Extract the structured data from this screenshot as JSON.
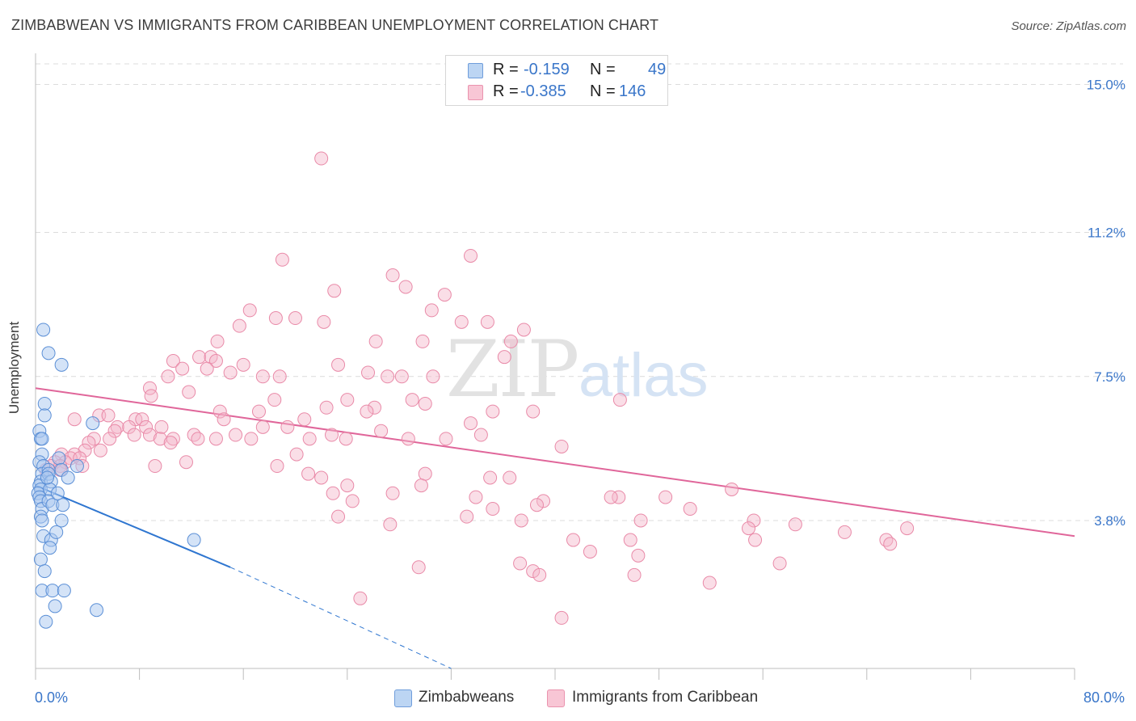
{
  "title": "ZIMBABWEAN VS IMMIGRANTS FROM CARIBBEAN UNEMPLOYMENT CORRELATION CHART",
  "source": "Source: ZipAtlas.com",
  "watermark": {
    "zip": "ZIP",
    "atlas": "atlas"
  },
  "colors": {
    "blue_fill": "#a9c8ef",
    "blue_stroke": "#5b8fd6",
    "blue_line": "#2f76d0",
    "pink_fill": "#f5b6c9",
    "pink_stroke": "#e98aa8",
    "pink_line": "#e0669a",
    "tick_text": "#3a76c9",
    "grid": "#dcdcdc"
  },
  "legend_top": [
    {
      "r_label": "R =",
      "r_value": "-0.159",
      "n_label": "N =",
      "n_value": "49",
      "color": "blue"
    },
    {
      "r_label": "R =",
      "r_value": "-0.385",
      "n_label": "N =",
      "n_value": "146",
      "color": "pink"
    }
  ],
  "legend_bottom": [
    {
      "label": "Zimbabweans",
      "color": "blue"
    },
    {
      "label": "Immigrants from Caribbean",
      "color": "pink"
    }
  ],
  "chart_data": {
    "type": "scatter",
    "title": "ZIMBABWEAN VS IMMIGRANTS FROM CARIBBEAN UNEMPLOYMENT CORRELATION CHART",
    "xlabel": "",
    "ylabel": "Unemployment",
    "xlim": [
      0,
      80
    ],
    "ylim": [
      0,
      15.8
    ],
    "x_tick_labels": [
      "0.0%",
      "80.0%"
    ],
    "y_ticks": [
      3.8,
      7.5,
      11.2,
      15.0
    ],
    "y_tick_labels": [
      "3.8%",
      "7.5%",
      "11.2%",
      "15.0%"
    ],
    "grid": "horizontal dashed",
    "legend_placement": "top-center",
    "series": [
      {
        "name": "Zimbabweans",
        "color": "blue",
        "trend": {
          "x_start": 0,
          "y_start": 4.7,
          "x_solid_end": 15,
          "y_solid_end": 2.6,
          "x_dash_end": 32,
          "y_dash_end": 0.0
        },
        "points": [
          [
            0.3,
            6.1
          ],
          [
            0.4,
            5.9
          ],
          [
            0.5,
            5.9
          ],
          [
            0.5,
            5.5
          ],
          [
            0.3,
            5.3
          ],
          [
            0.6,
            5.2
          ],
          [
            0.5,
            5.0
          ],
          [
            0.4,
            4.8
          ],
          [
            0.3,
            4.7
          ],
          [
            0.4,
            4.6
          ],
          [
            0.2,
            4.5
          ],
          [
            0.3,
            4.4
          ],
          [
            0.4,
            4.3
          ],
          [
            0.5,
            4.1
          ],
          [
            0.4,
            3.9
          ],
          [
            0.5,
            3.8
          ],
          [
            0.6,
            3.4
          ],
          [
            0.4,
            2.8
          ],
          [
            0.7,
            2.5
          ],
          [
            0.5,
            2.0
          ],
          [
            0.8,
            1.2
          ],
          [
            0.6,
            8.7
          ],
          [
            1.0,
            8.1
          ],
          [
            0.7,
            6.8
          ],
          [
            0.7,
            6.5
          ],
          [
            1.0,
            5.1
          ],
          [
            1.0,
            5.0
          ],
          [
            1.2,
            4.8
          ],
          [
            1.1,
            4.6
          ],
          [
            1.0,
            4.3
          ],
          [
            1.3,
            4.2
          ],
          [
            1.2,
            3.3
          ],
          [
            1.1,
            3.1
          ],
          [
            1.6,
            3.5
          ],
          [
            1.3,
            2.0
          ],
          [
            1.5,
            1.6
          ],
          [
            2.0,
            7.8
          ],
          [
            1.8,
            5.4
          ],
          [
            2.0,
            5.1
          ],
          [
            2.1,
            4.2
          ],
          [
            2.0,
            3.8
          ],
          [
            2.2,
            2.0
          ],
          [
            3.2,
            5.2
          ],
          [
            4.4,
            6.3
          ],
          [
            2.5,
            4.9
          ],
          [
            1.7,
            4.5
          ],
          [
            4.7,
            1.5
          ],
          [
            12.2,
            3.3
          ],
          [
            0.9,
            4.9
          ]
        ]
      },
      {
        "name": "Immigrants from Caribbean",
        "color": "pink",
        "trend": {
          "x_start": 0,
          "y_start": 7.2,
          "x_end": 80,
          "y_end": 3.4
        },
        "points": [
          [
            22,
            13.1
          ],
          [
            33.5,
            10.6
          ],
          [
            19,
            10.5
          ],
          [
            27.5,
            10.1
          ],
          [
            28.5,
            9.8
          ],
          [
            23,
            9.7
          ],
          [
            31.5,
            9.6
          ],
          [
            16.5,
            9.2
          ],
          [
            30.5,
            9.2
          ],
          [
            18.5,
            9.0
          ],
          [
            20,
            9.0
          ],
          [
            22.2,
            8.9
          ],
          [
            32.8,
            8.9
          ],
          [
            34.8,
            8.9
          ],
          [
            15.7,
            8.8
          ],
          [
            37.6,
            8.7
          ],
          [
            14,
            8.4
          ],
          [
            26.2,
            8.4
          ],
          [
            29.8,
            8.4
          ],
          [
            36.6,
            8.4
          ],
          [
            12.6,
            8.0
          ],
          [
            13.5,
            8.0
          ],
          [
            36.1,
            8.0
          ],
          [
            10.6,
            7.9
          ],
          [
            13.9,
            7.9
          ],
          [
            16,
            7.8
          ],
          [
            23.3,
            7.8
          ],
          [
            11.3,
            7.7
          ],
          [
            13.2,
            7.7
          ],
          [
            15,
            7.6
          ],
          [
            25.6,
            7.6
          ],
          [
            10.2,
            7.5
          ],
          [
            17.5,
            7.5
          ],
          [
            18.8,
            7.5
          ],
          [
            27.1,
            7.5
          ],
          [
            28.2,
            7.5
          ],
          [
            30.6,
            7.5
          ],
          [
            8.8,
            7.2
          ],
          [
            11.8,
            7.1
          ],
          [
            8.9,
            7.0
          ],
          [
            24,
            6.9
          ],
          [
            29,
            6.9
          ],
          [
            18.4,
            6.9
          ],
          [
            30,
            6.8
          ],
          [
            45,
            6.9
          ],
          [
            22.4,
            6.7
          ],
          [
            26.1,
            6.7
          ],
          [
            14.2,
            6.6
          ],
          [
            17.2,
            6.6
          ],
          [
            25.5,
            6.6
          ],
          [
            35.2,
            6.6
          ],
          [
            38.3,
            6.6
          ],
          [
            4.9,
            6.5
          ],
          [
            5.6,
            6.5
          ],
          [
            14.5,
            6.4
          ],
          [
            20.7,
            6.4
          ],
          [
            3,
            6.4
          ],
          [
            7.7,
            6.4
          ],
          [
            8.2,
            6.4
          ],
          [
            33.5,
            6.3
          ],
          [
            6.3,
            6.2
          ],
          [
            7.2,
            6.2
          ],
          [
            8.5,
            6.2
          ],
          [
            9.7,
            6.2
          ],
          [
            17.5,
            6.2
          ],
          [
            19.4,
            6.2
          ],
          [
            26.6,
            6.1
          ],
          [
            6.1,
            6.1
          ],
          [
            7.6,
            6.0
          ],
          [
            8.8,
            6.0
          ],
          [
            12.2,
            6.0
          ],
          [
            15.4,
            6.0
          ],
          [
            22.8,
            6.0
          ],
          [
            34.3,
            6.0
          ],
          [
            4.5,
            5.9
          ],
          [
            5.7,
            5.9
          ],
          [
            9.6,
            5.9
          ],
          [
            10.6,
            5.9
          ],
          [
            12.5,
            5.9
          ],
          [
            13.9,
            5.9
          ],
          [
            16.6,
            5.9
          ],
          [
            21.1,
            5.9
          ],
          [
            23.9,
            5.9
          ],
          [
            28.7,
            5.9
          ],
          [
            31.6,
            5.9
          ],
          [
            4.1,
            5.8
          ],
          [
            10.4,
            5.8
          ],
          [
            40.5,
            5.7
          ],
          [
            3.8,
            5.6
          ],
          [
            5,
            5.6
          ],
          [
            2,
            5.5
          ],
          [
            3,
            5.5
          ],
          [
            20.1,
            5.5
          ],
          [
            2.7,
            5.4
          ],
          [
            3.4,
            5.4
          ],
          [
            1.5,
            5.3
          ],
          [
            2.3,
            5.3
          ],
          [
            11.6,
            5.3
          ],
          [
            1.2,
            5.2
          ],
          [
            1.9,
            5.2
          ],
          [
            3.6,
            5.2
          ],
          [
            9.2,
            5.2
          ],
          [
            18.6,
            5.2
          ],
          [
            0.8,
            5.1
          ],
          [
            1.9,
            5.1
          ],
          [
            21,
            5.0
          ],
          [
            30,
            5.0
          ],
          [
            36.5,
            4.9
          ],
          [
            35,
            4.9
          ],
          [
            22,
            4.9
          ],
          [
            24,
            4.7
          ],
          [
            29.7,
            4.7
          ],
          [
            53.6,
            4.6
          ],
          [
            22.9,
            4.5
          ],
          [
            27.5,
            4.5
          ],
          [
            44.9,
            4.4
          ],
          [
            33.9,
            4.4
          ],
          [
            44.3,
            4.4
          ],
          [
            48.5,
            4.4
          ],
          [
            39.1,
            4.3
          ],
          [
            24.4,
            4.3
          ],
          [
            38.6,
            4.2
          ],
          [
            35.2,
            4.1
          ],
          [
            50.4,
            4.1
          ],
          [
            23.3,
            3.9
          ],
          [
            33.2,
            3.9
          ],
          [
            37.4,
            3.8
          ],
          [
            46.6,
            3.8
          ],
          [
            55.3,
            3.8
          ],
          [
            58.5,
            3.7
          ],
          [
            27.3,
            3.7
          ],
          [
            54.9,
            3.6
          ],
          [
            67.1,
            3.6
          ],
          [
            62.3,
            3.5
          ],
          [
            41.4,
            3.3
          ],
          [
            45.8,
            3.3
          ],
          [
            55.4,
            3.3
          ],
          [
            65.5,
            3.3
          ],
          [
            65.8,
            3.2
          ],
          [
            42.7,
            3.0
          ],
          [
            46.4,
            2.9
          ],
          [
            37.3,
            2.7
          ],
          [
            57.3,
            2.7
          ],
          [
            29.5,
            2.6
          ],
          [
            38.3,
            2.5
          ],
          [
            38.8,
            2.4
          ],
          [
            51.9,
            2.2
          ],
          [
            25,
            1.8
          ],
          [
            40.5,
            1.3
          ],
          [
            46.1,
            2.4
          ]
        ]
      }
    ]
  }
}
